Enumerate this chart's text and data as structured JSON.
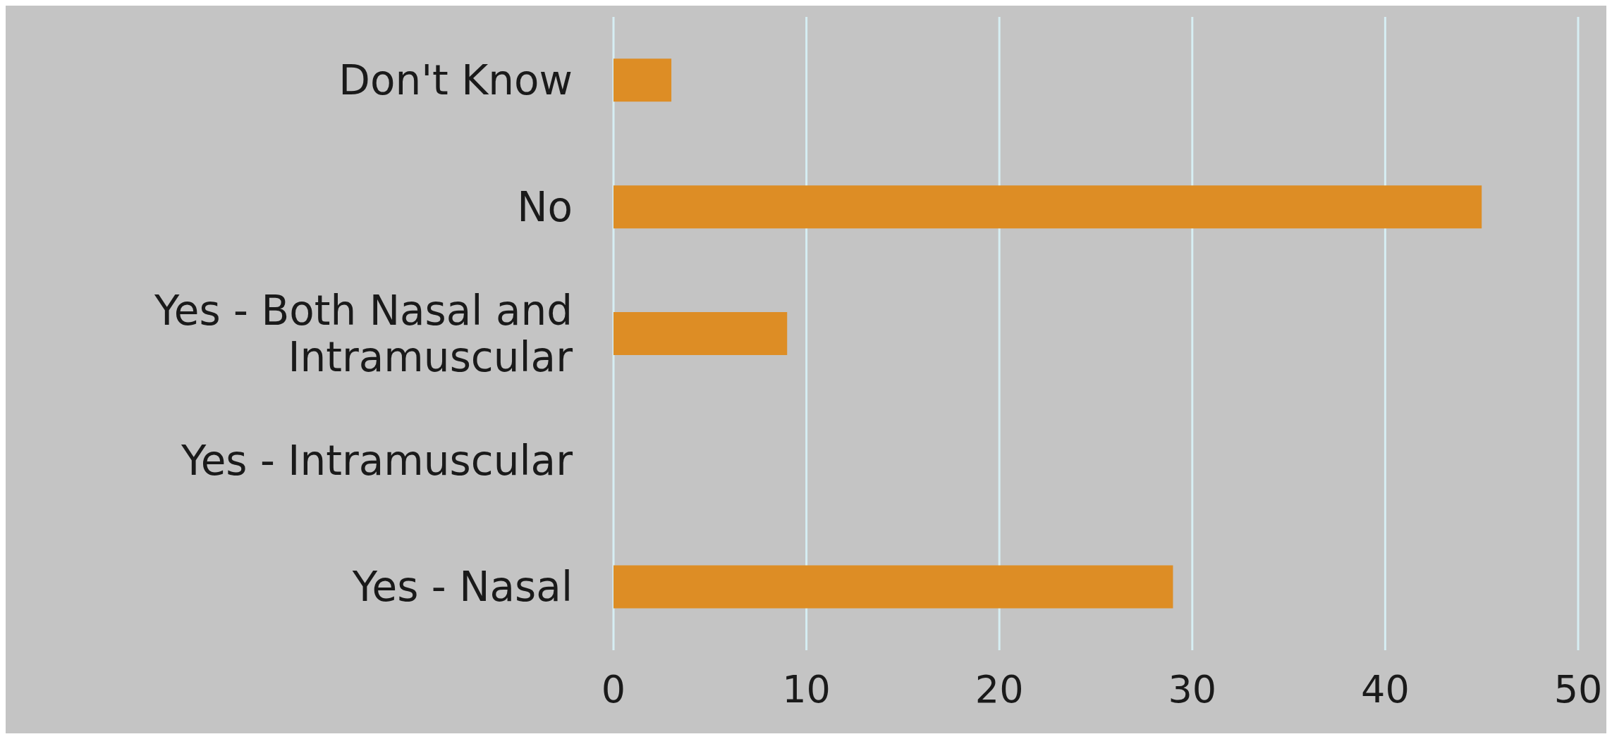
{
  "chart_data": {
    "type": "bar",
    "orientation": "horizontal",
    "categories": [
      "Don't Know",
      "No",
      "Yes - Both Nasal and Intramuscular",
      "Yes - Intramuscular",
      "Yes - Nasal"
    ],
    "values": [
      3,
      45,
      9,
      0,
      29
    ],
    "color": "#dd8d25",
    "xlim": [
      0,
      50
    ],
    "xticks": [
      0,
      10,
      20,
      30,
      40,
      50
    ],
    "grid": "x",
    "legend": false
  }
}
